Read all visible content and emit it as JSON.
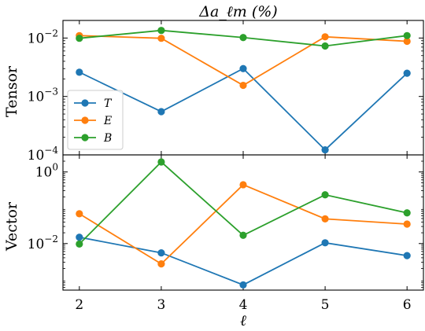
{
  "chart_data": {
    "type": "line",
    "title": "Δa_ℓm (%)",
    "xlabel": "ℓ",
    "x": [
      2,
      3,
      4,
      5,
      6
    ],
    "x_ticks": [
      "2",
      "3",
      "4",
      "5",
      "6"
    ],
    "xlim": [
      1.8,
      6.2
    ],
    "legend_placement": "lower-left of top panel",
    "series_colors": {
      "T": "#1f77b4",
      "E": "#ff7f0e",
      "B": "#2ca02c"
    },
    "panels": [
      {
        "ylabel": "Tensor",
        "yscale": "log",
        "ylim": [
          0.0001,
          0.02
        ],
        "y_ticks": [
          {
            "value": 0.01,
            "label": "10",
            "exp": "−2"
          },
          {
            "value": 0.001,
            "label": "10",
            "exp": "−3"
          },
          {
            "value": 0.0001,
            "label": "10",
            "exp": "−4"
          }
        ],
        "series": [
          {
            "name": "T",
            "values": [
              0.0026,
              0.00055,
              0.003,
              0.000122,
              0.0025
            ]
          },
          {
            "name": "E",
            "values": [
              0.011,
              0.0099,
              0.00155,
              0.0105,
              0.0088
            ]
          },
          {
            "name": "B",
            "values": [
              0.0099,
              0.0135,
              0.0102,
              0.0073,
              0.011
            ]
          }
        ]
      },
      {
        "ylabel": "Vector",
        "yscale": "log",
        "ylim": [
          0.0005,
          3
        ],
        "y_ticks": [
          {
            "value": 1,
            "label": "10",
            "exp": "0"
          },
          {
            "value": 0.01,
            "label": "10",
            "exp": "−2"
          }
        ],
        "series": [
          {
            "name": "T",
            "values": [
              0.015,
              0.0055,
              0.0007,
              0.0105,
              0.0046
            ]
          },
          {
            "name": "E",
            "values": [
              0.068,
              0.0027,
              0.44,
              0.049,
              0.035
            ]
          },
          {
            "name": "B",
            "values": [
              0.0097,
              1.9,
              0.017,
              0.23,
              0.072
            ]
          }
        ]
      }
    ]
  }
}
